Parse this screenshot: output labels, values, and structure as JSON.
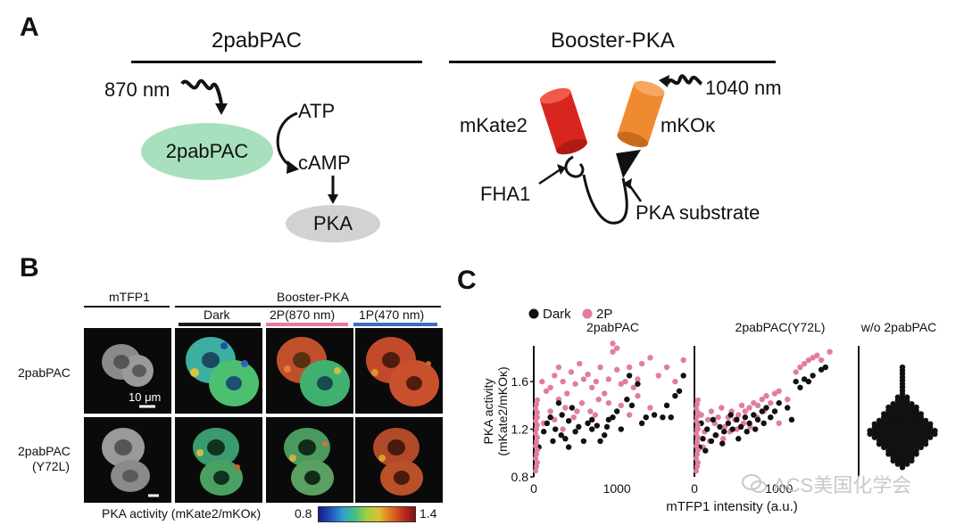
{
  "panelA": {
    "letter": "A",
    "left_title": "2pabPAC",
    "right_title": "Booster-PKA",
    "wavelength_left": "870 nm",
    "wavelength_right": "1040 nm",
    "enzyme": "2pabPAC",
    "substrate": "ATP",
    "product": "cAMP",
    "target": "PKA",
    "mkate2": "mKate2",
    "mko": "mKOκ",
    "fha1": "FHA1",
    "pka_substrate": "PKA substrate"
  },
  "panelB": {
    "letter": "B",
    "col_mtfp1": "mTFP1",
    "col_booster": "Booster-PKA",
    "sub_dark": "Dark",
    "sub_2p": "2P(870 nm)",
    "sub_1p": "1P(470 nm)",
    "row1": "2pabPAC",
    "row2a": "2pabPAC",
    "row2b": "(Y72L)",
    "scalebar": "10 μm",
    "colorbar_label": "PKA activity (mKate2/mKOκ)",
    "colorbar_min": "0.8",
    "colorbar_max": "1.4",
    "colors": {
      "dark_bar": "#1a1a1a",
      "twoP_bar": "#e67a9a",
      "oneP_bar": "#3d6fc0"
    }
  },
  "panelC": {
    "letter": "C",
    "watermark": "ACS美国化学会"
  },
  "chart_data": {
    "type": "scatter",
    "legend": [
      "Dark",
      "2P"
    ],
    "legend_placement": "top-left",
    "colors": {
      "Dark": "#111111",
      "2P": "#e27d9a"
    },
    "ylabel": "PKA activity\n(mKate2/mKOκ)",
    "xlabel": "mTFP1 intensity (a.u.)",
    "ylim": [
      0.8,
      1.9
    ],
    "yticks": [
      "0.8",
      "1.2",
      "1.6"
    ],
    "subplots": [
      {
        "title": "2pabPAC",
        "xlim": [
          0,
          1900
        ],
        "xticks": [
          "0",
          "1000"
        ],
        "series": [
          {
            "name": "Dark",
            "points": [
              [
                60,
                1.05
              ],
              [
                120,
                1.18
              ],
              [
                160,
                1.25
              ],
              [
                200,
                1.3
              ],
              [
                260,
                1.2
              ],
              [
                300,
                1.42
              ],
              [
                340,
                1.32
              ],
              [
                380,
                1.12
              ],
              [
                420,
                1.27
              ],
              [
                460,
                1.38
              ],
              [
                500,
                1.18
              ],
              [
                540,
                1.22
              ],
              [
                600,
                1.1
              ],
              [
                650,
                1.25
              ],
              [
                700,
                1.2
              ],
              [
                760,
                1.23
              ],
              [
                800,
                1.1
              ],
              [
                850,
                1.15
              ],
              [
                900,
                1.28
              ],
              [
                950,
                1.3
              ],
              [
                1000,
                1.35
              ],
              [
                1050,
                1.2
              ],
              [
                1120,
                1.45
              ],
              [
                1180,
                1.4
              ],
              [
                1250,
                1.58
              ],
              [
                1300,
                1.25
              ],
              [
                1350,
                1.3
              ],
              [
                1450,
                1.32
              ],
              [
                1550,
                1.3
              ],
              [
                1650,
                1.3
              ],
              [
                1700,
                1.48
              ],
              [
                1750,
                1.52
              ],
              [
                230,
                1.1
              ],
              [
                330,
                1.15
              ],
              [
                420,
                1.05
              ],
              [
                700,
                1.28
              ],
              [
                880,
                1.22
              ],
              [
                1150,
                1.65
              ],
              [
                1600,
                1.4
              ],
              [
                1800,
                1.65
              ]
            ]
          },
          {
            "name": "2P",
            "points": [
              [
                40,
                1.3
              ],
              [
                100,
                1.6
              ],
              [
                150,
                1.52
              ],
              [
                200,
                1.55
              ],
              [
                250,
                1.65
              ],
              [
                300,
                1.72
              ],
              [
                350,
                1.6
              ],
              [
                400,
                1.5
              ],
              [
                450,
                1.68
              ],
              [
                500,
                1.58
              ],
              [
                550,
                1.75
              ],
              [
                600,
                1.62
              ],
              [
                650,
                1.66
              ],
              [
                700,
                1.55
              ],
              [
                750,
                1.6
              ],
              [
                800,
                1.72
              ],
              [
                850,
                1.5
              ],
              [
                900,
                1.62
              ],
              [
                950,
                1.85
              ],
              [
                1000,
                1.7
              ],
              [
                1050,
                1.58
              ],
              [
                1100,
                1.6
              ],
              [
                1150,
                1.72
              ],
              [
                1200,
                1.55
              ],
              [
                1250,
                1.62
              ],
              [
                1300,
                1.75
              ],
              [
                1400,
                1.8
              ],
              [
                1500,
                1.65
              ],
              [
                1600,
                1.72
              ],
              [
                1700,
                1.6
              ],
              [
                1800,
                1.78
              ],
              [
                200,
                1.35
              ],
              [
                300,
                1.45
              ],
              [
                380,
                1.38
              ],
              [
                480,
                1.3
              ],
              [
                580,
                1.42
              ],
              [
                680,
                1.35
              ],
              [
                780,
                1.45
              ],
              [
                900,
                1.42
              ],
              [
                950,
                1.92
              ],
              [
                1000,
                1.88
              ],
              [
                1050,
                1.4
              ],
              [
                1150,
                1.32
              ],
              [
                1250,
                1.48
              ],
              [
                1400,
                1.38
              ],
              [
                1650,
                1.3
              ],
              [
                120,
                1.25
              ],
              [
                250,
                1.28
              ],
              [
                350,
                1.2
              ],
              [
                520,
                1.35
              ],
              [
                740,
                1.32
              ]
            ]
          }
        ]
      },
      {
        "title": "2pabPAC(Y72L)",
        "xlim": [
          0,
          1900
        ],
        "xticks": [
          "0",
          "1000"
        ],
        "series": [
          {
            "name": "Dark",
            "points": [
              [
                60,
                1.05
              ],
              [
                100,
                1.12
              ],
              [
                150,
                1.2
              ],
              [
                200,
                1.1
              ],
              [
                250,
                1.15
              ],
              [
                300,
                1.22
              ],
              [
                350,
                1.18
              ],
              [
                400,
                1.25
              ],
              [
                450,
                1.2
              ],
              [
                500,
                1.28
              ],
              [
                550,
                1.22
              ],
              [
                600,
                1.3
              ],
              [
                650,
                1.25
              ],
              [
                700,
                1.32
              ],
              [
                750,
                1.28
              ],
              [
                800,
                1.35
              ],
              [
                850,
                1.38
              ],
              [
                900,
                1.3
              ],
              [
                1000,
                1.42
              ],
              [
                1100,
                1.38
              ],
              [
                1200,
                1.6
              ],
              [
                1250,
                1.55
              ],
              [
                1300,
                1.62
              ],
              [
                1400,
                1.65
              ],
              [
                1500,
                1.7
              ],
              [
                1550,
                1.72
              ],
              [
                80,
                1.25
              ],
              [
                130,
                1.02
              ],
              [
                220,
                1.28
              ],
              [
                330,
                1.08
              ],
              [
                430,
                1.32
              ],
              [
                520,
                1.12
              ],
              [
                620,
                1.18
              ],
              [
                720,
                1.2
              ],
              [
                820,
                1.25
              ],
              [
                950,
                1.35
              ],
              [
                1150,
                1.28
              ],
              [
                1350,
                1.6
              ]
            ]
          },
          {
            "name": "2P",
            "points": [
              [
                40,
                1.2
              ],
              [
                80,
                1.32
              ],
              [
                120,
                1.18
              ],
              [
                160,
                1.28
              ],
              [
                200,
                1.35
              ],
              [
                240,
                1.25
              ],
              [
                280,
                1.3
              ],
              [
                320,
                1.38
              ],
              [
                360,
                1.22
              ],
              [
                400,
                1.3
              ],
              [
                440,
                1.35
              ],
              [
                480,
                1.28
              ],
              [
                520,
                1.32
              ],
              [
                560,
                1.4
              ],
              [
                600,
                1.35
              ],
              [
                650,
                1.38
              ],
              [
                700,
                1.42
              ],
              [
                750,
                1.4
              ],
              [
                800,
                1.45
              ],
              [
                850,
                1.48
              ],
              [
                900,
                1.42
              ],
              [
                950,
                1.5
              ],
              [
                1000,
                1.52
              ],
              [
                1100,
                1.45
              ],
              [
                1200,
                1.68
              ],
              [
                1250,
                1.72
              ],
              [
                1300,
                1.75
              ],
              [
                1350,
                1.78
              ],
              [
                1400,
                1.8
              ],
              [
                1450,
                1.82
              ],
              [
                1500,
                1.78
              ],
              [
                1600,
                1.85
              ],
              [
                100,
                1.05
              ],
              [
                180,
                1.1
              ],
              [
                260,
                1.15
              ],
              [
                340,
                1.12
              ],
              [
                420,
                1.18
              ],
              [
                500,
                1.2
              ],
              [
                580,
                1.25
              ],
              [
                660,
                1.22
              ],
              [
                740,
                1.3
              ],
              [
                820,
                1.35
              ],
              [
                900,
                1.3
              ],
              [
                1000,
                1.25
              ]
            ]
          }
        ]
      },
      {
        "title": "w/o 2pabPAC",
        "series": [
          {
            "name": "Dark",
            "distribution": "beeswarm",
            "center": 1.18,
            "min": 0.88,
            "max": 1.72
          }
        ]
      }
    ]
  }
}
